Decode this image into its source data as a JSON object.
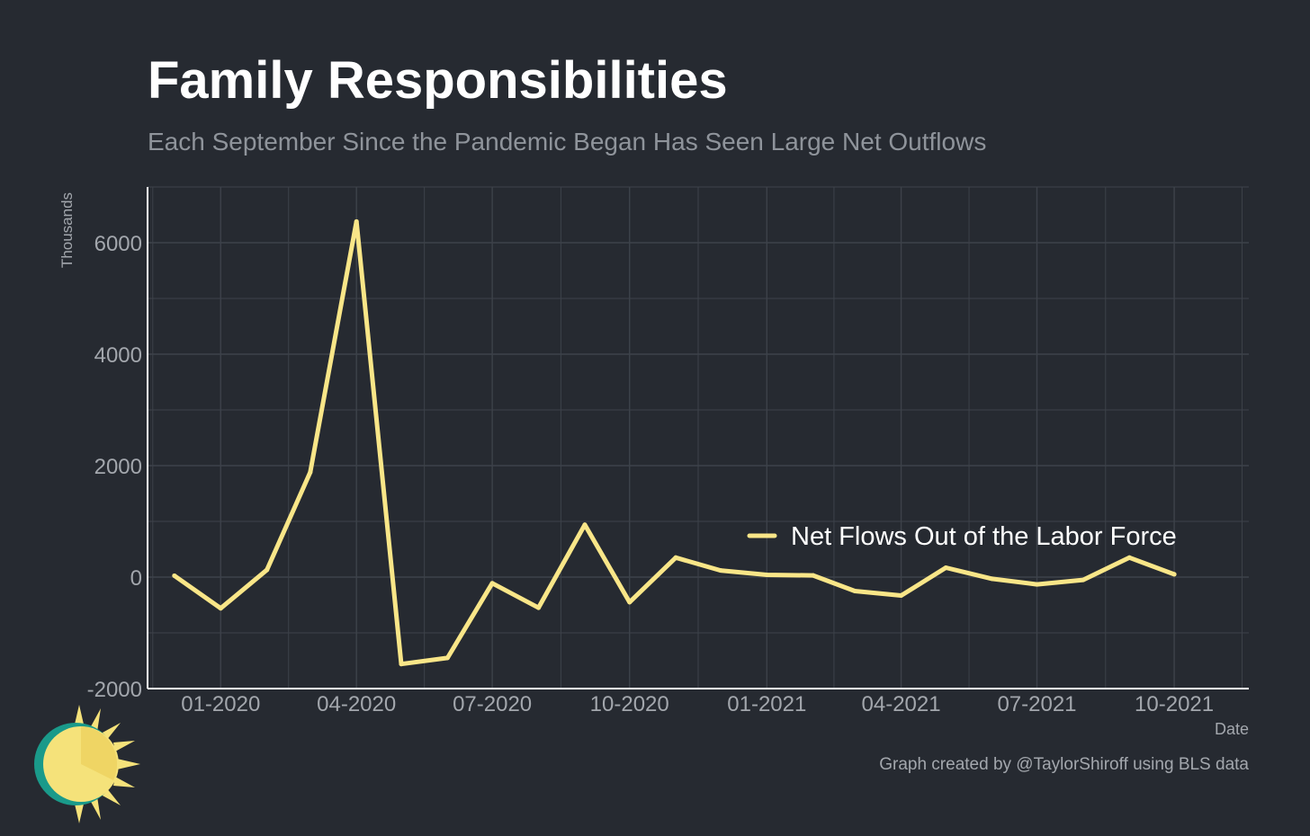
{
  "title": "Family Responsibilities",
  "subtitle": "Each September Since the Pandemic Began Has Seen Large Net Outflows",
  "caption": "Graph created by @TaylorShiroff using BLS data",
  "colors": {
    "background": "#262a31",
    "line": "#f9e688",
    "grid": "#3d424a",
    "axis": "#ffffff",
    "tick_text": "#a3a7ad",
    "logo_sun": "#f5e27a",
    "logo_ring": "#1a9a8a"
  },
  "chart_data": {
    "type": "line",
    "xlabel": "Date",
    "ylabel": "Thousands",
    "ylim": [
      -2000,
      7000
    ],
    "xlim": [
      "2019-11-13",
      "2021-11-20"
    ],
    "grid": true,
    "legend_position": "right",
    "y_ticks": [
      -2000,
      0,
      2000,
      4000,
      6000
    ],
    "y_tick_labels": [
      "-2000",
      "0",
      "2000",
      "4000",
      "6000"
    ],
    "x_ticks": [
      "2020-01-01",
      "2020-04-01",
      "2020-07-01",
      "2020-10-01",
      "2021-01-01",
      "2021-04-01",
      "2021-07-01",
      "2021-10-01"
    ],
    "x_tick_labels": [
      "01-2020",
      "04-2020",
      "07-2020",
      "10-2020",
      "01-2021",
      "04-2021",
      "07-2021",
      "10-2021"
    ],
    "series": [
      {
        "name": "Net Flows Out of the Labor Force",
        "x": [
          "2019-12-01",
          "2020-01-01",
          "2020-02-01",
          "2020-03-01",
          "2020-04-01",
          "2020-05-01",
          "2020-06-01",
          "2020-07-01",
          "2020-08-01",
          "2020-09-01",
          "2020-10-01",
          "2020-11-01",
          "2020-12-01",
          "2021-01-01",
          "2021-02-01",
          "2021-03-01",
          "2021-04-01",
          "2021-05-01",
          "2021-06-01",
          "2021-07-01",
          "2021-08-01",
          "2021-09-01",
          "2021-10-01"
        ],
        "y": [
          25,
          -560,
          130,
          1880,
          6380,
          -1560,
          -1450,
          -110,
          -550,
          940,
          -450,
          350,
          120,
          40,
          30,
          -250,
          -330,
          170,
          -30,
          -130,
          -50,
          350,
          50
        ]
      }
    ]
  }
}
